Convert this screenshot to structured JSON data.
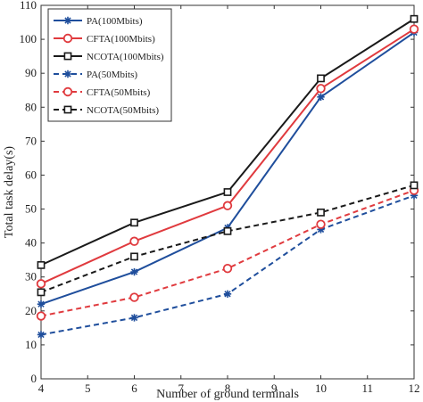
{
  "chart_data": {
    "type": "line",
    "title": "",
    "xlabel": "Number of ground terminals",
    "ylabel": "Total task delay(s)",
    "xlim": [
      4,
      12
    ],
    "ylim": [
      0,
      110
    ],
    "xticks": [
      4,
      5,
      6,
      7,
      8,
      9,
      10,
      11,
      12
    ],
    "yticks": [
      0,
      10,
      20,
      30,
      40,
      50,
      60,
      70,
      80,
      90,
      100,
      110
    ],
    "x": [
      4,
      6,
      8,
      10,
      12
    ],
    "grid": false,
    "legend_position": "top-left",
    "series": [
      {
        "name": "PA(100Mbits)",
        "color": "#1f4e9c",
        "dash": "solid",
        "marker": "asterisk",
        "values": [
          22,
          31.5,
          44.5,
          83,
          102
        ]
      },
      {
        "name": "CFTA(100Mbits)",
        "color": "#e03a3e",
        "dash": "solid",
        "marker": "circle",
        "values": [
          28,
          40.5,
          51,
          85.5,
          103
        ]
      },
      {
        "name": "NCOTA(100Mbits)",
        "color": "#1a1a1a",
        "dash": "solid",
        "marker": "square",
        "values": [
          33.5,
          46,
          55,
          88.5,
          106
        ]
      },
      {
        "name": "PA(50Mbits)",
        "color": "#1f4e9c",
        "dash": "dashed",
        "marker": "asterisk",
        "values": [
          13,
          18,
          25,
          44,
          54
        ]
      },
      {
        "name": "CFTA(50Mbits)",
        "color": "#e03a3e",
        "dash": "dashed",
        "marker": "circle",
        "values": [
          18.5,
          24,
          32.5,
          45.5,
          55.5
        ]
      },
      {
        "name": "NCOTA(50Mbits)",
        "color": "#1a1a1a",
        "dash": "dashed",
        "marker": "square",
        "values": [
          25.5,
          36,
          43.5,
          49,
          57
        ]
      }
    ]
  }
}
